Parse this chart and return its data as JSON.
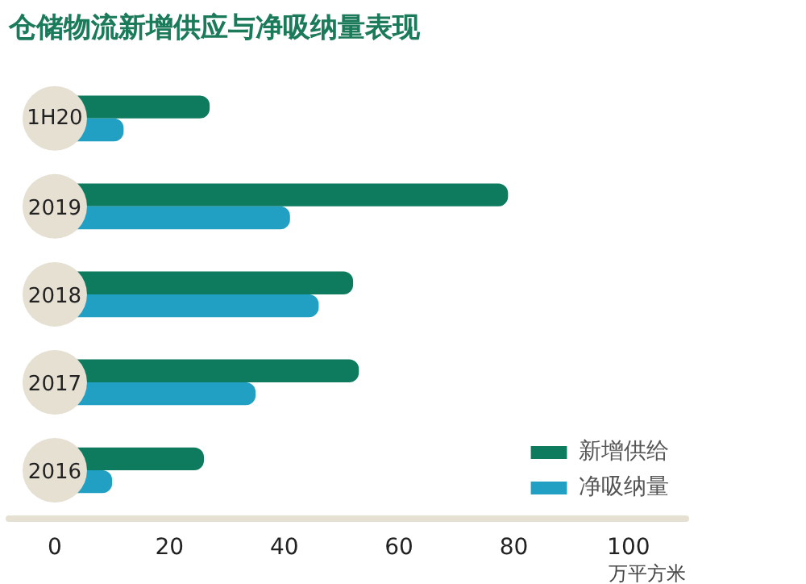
{
  "chart_data": {
    "type": "bar",
    "orientation": "horizontal",
    "title": "仓储物流新增供应与净吸纳量表现",
    "xlabel": "万平方米",
    "categories": [
      "1H20",
      "2019",
      "2018",
      "2017",
      "2016"
    ],
    "series": [
      {
        "name": "新增供给",
        "color": "#0e7a5e",
        "values": [
          27,
          79,
          52,
          53,
          26
        ]
      },
      {
        "name": "净吸纳量",
        "color": "#22a0c4",
        "values": [
          12,
          41,
          46,
          35,
          10
        ]
      }
    ],
    "xlim": [
      -8,
      110
    ],
    "xticks": [
      0,
      20,
      40,
      60,
      80,
      100
    ],
    "grid": false,
    "legend": "bottom right"
  }
}
